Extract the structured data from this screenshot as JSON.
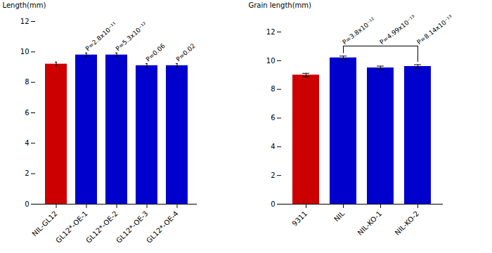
{
  "chart_data": [
    {
      "type": "bar",
      "categories": [
        "NIL-GL12",
        "GL12*-OE-1",
        "GL12*-OE-2",
        "GL12*-OE-3",
        "GL12*-OE-4"
      ],
      "values": [
        9.2,
        9.8,
        9.8,
        9.1,
        9.1
      ],
      "errors": [
        0.13,
        0.13,
        0.13,
        0.13,
        0.13
      ],
      "colors": [
        "#cc0000",
        "#0000cc",
        "#0000cc",
        "#0000cc",
        "#0000cc"
      ],
      "ylabel": "Length(mm)",
      "ylim": [
        0,
        12
      ],
      "yticks": [
        0,
        2,
        4,
        6,
        8,
        10,
        12
      ],
      "annotations": [
        {
          "text": "P=2.8x10⁻¹¹",
          "category": "GL12*-OE-1"
        },
        {
          "text": "P=5.3x10⁻¹²",
          "category": "GL12*-OE-2"
        },
        {
          "text": "P=0.06",
          "category": "GL12*-OE-3"
        },
        {
          "text": "P=0.02",
          "category": "GL12*-OE-4"
        }
      ]
    },
    {
      "type": "bar",
      "categories": [
        "9311",
        "NIL",
        "NIL-KO-1",
        "NIL-KO-2"
      ],
      "values": [
        9.0,
        10.2,
        9.5,
        9.6
      ],
      "errors": [
        0.12,
        0.12,
        0.12,
        0.12
      ],
      "colors": [
        "#cc0000",
        "#0000cc",
        "#0000cc",
        "#0000cc"
      ],
      "ylabel": "Grain length(mm)",
      "ylim": [
        0,
        12
      ],
      "yticks": [
        0,
        2,
        4,
        6,
        8,
        10,
        12
      ],
      "bracket": [
        "NIL",
        "NIL-KO-2"
      ],
      "annotations": [
        {
          "text": "P=3.8x10⁻¹²",
          "category": "NIL"
        },
        {
          "text": "P=4.99x10⁻¹³",
          "category": "NIL-KO-1"
        },
        {
          "text": "P=8.14x10⁻¹³",
          "category": "NIL-KO-2"
        }
      ]
    }
  ]
}
